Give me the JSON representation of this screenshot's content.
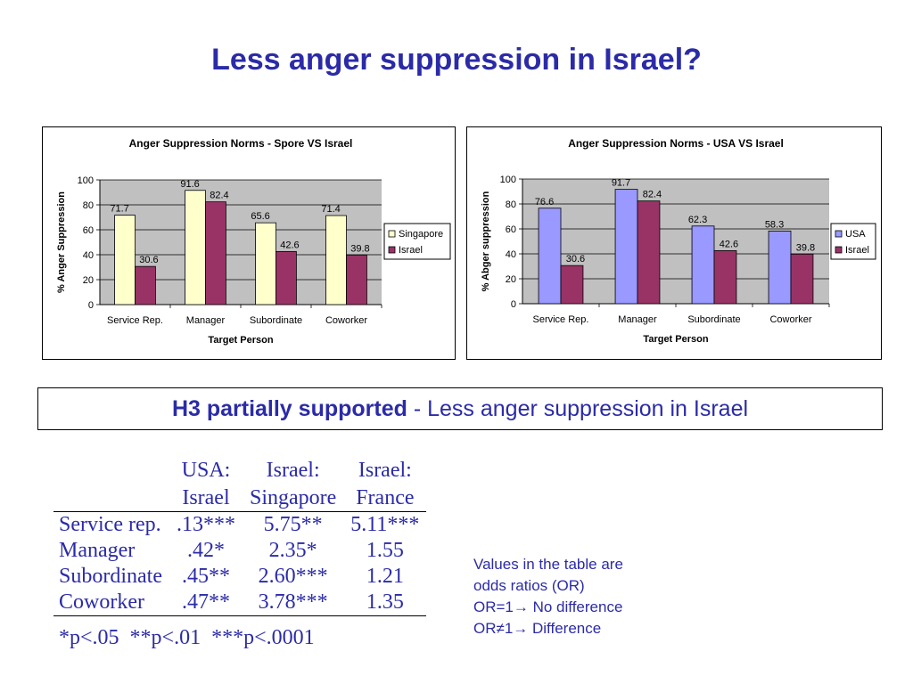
{
  "slide": {
    "title": "Less anger suppression in Israel?",
    "hypothesis_bold": "H3 partially supported",
    "hypothesis_rest": " -  Less anger suppression in Israel"
  },
  "table": {
    "headers_line1": [
      "",
      "USA:",
      "Israel:",
      "Israel:"
    ],
    "headers_line2": [
      "",
      "Israel",
      "Singapore",
      "France"
    ],
    "rows": [
      [
        "Service rep.",
        ".13***",
        "5.75**",
        "5.11***"
      ],
      [
        "Manager",
        ".42*",
        "2.35*",
        "1.55"
      ],
      [
        "Subordinate",
        ".45**",
        "2.60***",
        "1.21"
      ],
      [
        "Coworker",
        ".47**",
        "3.78***",
        "1.35"
      ]
    ],
    "footnote": "*p<.05  **p<.01  ***p<.0001"
  },
  "notes": {
    "line1": "Values in the table are",
    "line2": "odds ratios (OR)",
    "line3": "OR=1→ No difference",
    "line4": "OR≠1→ Difference"
  },
  "chart_data": [
    {
      "type": "bar",
      "title": "Anger Suppression Norms - Spore VS Israel",
      "xlabel": "Target Person",
      "ylabel": "% Anger Suppression",
      "categories": [
        "Service Rep.",
        "Manager",
        "Subordinate",
        "Coworker"
      ],
      "series": [
        {
          "name": "Singapore",
          "values": [
            71.7,
            91.6,
            65.6,
            71.4
          ],
          "color": "#ffffcc",
          "labels": [
            "71.7",
            "91.6",
            "65.6",
            "71.4"
          ]
        },
        {
          "name": "Israel",
          "values": [
            30.6,
            82.4,
            42.6,
            39.8
          ],
          "color": "#993366",
          "labels": [
            "30.6",
            "82.4",
            "42.6",
            "39.8"
          ]
        }
      ],
      "ylim": [
        0,
        100
      ],
      "yticks": [
        "0",
        "20",
        "40",
        "60",
        "80",
        "100"
      ],
      "plot_background": "#c0c0c0",
      "legend": "right"
    },
    {
      "type": "bar",
      "title": "Anger Suppression Norms - USA VS Israel",
      "xlabel": "Target Person",
      "ylabel": "% Abger suppression",
      "categories": [
        "Service Rep.",
        "Manager",
        "Subordinate",
        "Coworker"
      ],
      "series": [
        {
          "name": "USA",
          "values": [
            76.6,
            91.7,
            62.3,
            58.3
          ],
          "color": "#9999ff",
          "labels": [
            "76.6",
            "91.7",
            "62.3",
            "58.3"
          ]
        },
        {
          "name": "Israel",
          "values": [
            30.6,
            82.4,
            42.6,
            39.8
          ],
          "color": "#993366",
          "labels": [
            "30.6",
            "82.4",
            "42.6",
            "39.8"
          ]
        }
      ],
      "ylim": [
        0,
        100
      ],
      "yticks": [
        "0",
        "20",
        "40",
        "60",
        "80",
        "100"
      ],
      "plot_background": "#c0c0c0",
      "legend": "right"
    }
  ]
}
